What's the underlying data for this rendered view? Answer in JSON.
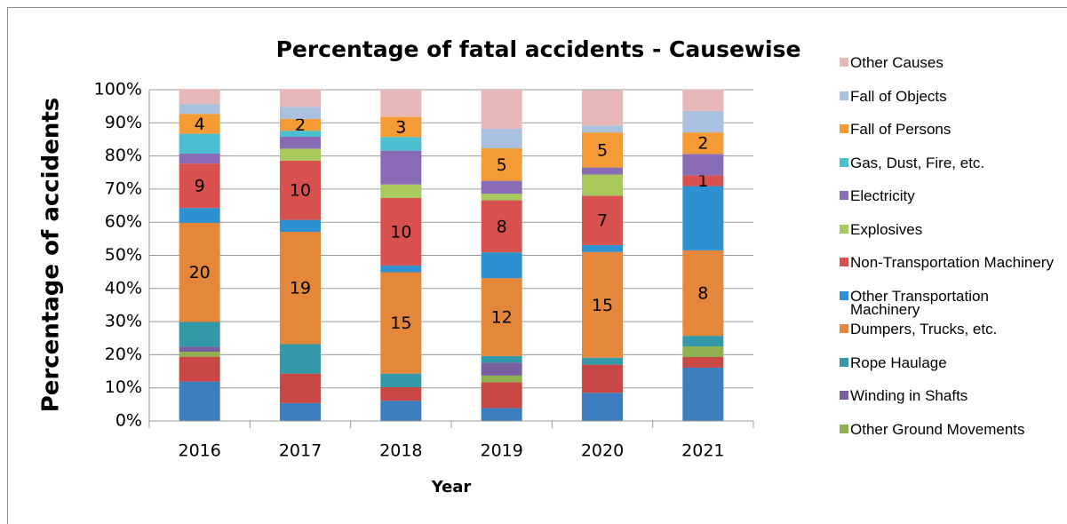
{
  "chart_data": {
    "type": "stacked_bar",
    "title": "Percentage of fatal accidents - Causewise",
    "x_label": "Year",
    "y_label": "Percentage of accidents",
    "categories": [
      "2016",
      "2017",
      "2018",
      "2019",
      "2020",
      "2021"
    ],
    "ylim": [
      0,
      100
    ],
    "yticks": [
      {
        "value": 0,
        "label": "0%"
      },
      {
        "value": 10,
        "label": "10%"
      },
      {
        "value": 20,
        "label": "20%"
      },
      {
        "value": 30,
        "label": "30%"
      },
      {
        "value": 40,
        "label": "40%"
      },
      {
        "value": 50,
        "label": "50%"
      },
      {
        "value": 60,
        "label": "60%"
      },
      {
        "value": 70,
        "label": "70%"
      },
      {
        "value": 80,
        "label": "80%"
      },
      {
        "value": 90,
        "label": "90%"
      },
      {
        "value": 100,
        "label": "100%"
      }
    ],
    "grid": true,
    "legend": "right",
    "series": [
      {
        "name": null,
        "color": "#3d7ebf",
        "values": [
          11.9,
          5.4,
          6.1,
          3.9,
          8.5,
          16.1
        ]
      },
      {
        "name": null,
        "color": "#c94845",
        "values": [
          7.5,
          8.9,
          4.1,
          7.8,
          8.5,
          3.2
        ]
      },
      {
        "name": "Other Ground Movements",
        "color": "#8fb04e",
        "values": [
          1.5,
          0,
          0,
          2.0,
          0,
          3.2
        ]
      },
      {
        "name": "Winding in Shafts",
        "color": "#7a5fa0",
        "values": [
          1.5,
          0,
          0,
          3.9,
          0,
          0
        ]
      },
      {
        "name": "Rope Haulage",
        "color": "#3399a8",
        "values": [
          7.5,
          8.9,
          4.1,
          2.0,
          2.1,
          3.2
        ]
      },
      {
        "name": "Dumpers, Trucks, etc.",
        "color": "#e4873a",
        "values": [
          29.9,
          33.9,
          30.6,
          23.5,
          31.9,
          25.8
        ],
        "counts": [
          20,
          19,
          15,
          12,
          15,
          8
        ]
      },
      {
        "name": "Other Transportation Machinery",
        "color": "#2e90d0",
        "values": [
          4.5,
          3.6,
          2.0,
          7.8,
          2.1,
          19.4
        ]
      },
      {
        "name": "Non-Transportation Machinery",
        "color": "#d9514e",
        "values": [
          13.4,
          17.9,
          20.4,
          15.7,
          14.9,
          3.2
        ],
        "counts": [
          9,
          10,
          10,
          8,
          7,
          1
        ]
      },
      {
        "name": "Explosives",
        "color": "#a8c95c",
        "values": [
          0,
          3.6,
          4.1,
          2.0,
          6.4,
          0
        ]
      },
      {
        "name": "Electricity",
        "color": "#8a6bb5",
        "values": [
          3.0,
          3.6,
          10.2,
          3.9,
          2.1,
          6.5
        ]
      },
      {
        "name": "Gas, Dust, Fire, etc.",
        "color": "#4bbfcf",
        "values": [
          6.0,
          1.8,
          4.1,
          0,
          0,
          0
        ]
      },
      {
        "name": "Fall of Persons",
        "color": "#f59b35",
        "values": [
          6.0,
          3.6,
          6.1,
          9.8,
          10.6,
          6.5
        ],
        "counts": [
          4,
          2,
          3,
          5,
          5,
          2
        ]
      },
      {
        "name": "Fall of Objects",
        "color": "#a9c1df",
        "values": [
          3.0,
          3.6,
          0,
          5.9,
          2.1,
          6.5
        ]
      },
      {
        "name": "Other Causes",
        "color": "#e8b8b9",
        "values": [
          4.5,
          5.4,
          8.2,
          11.8,
          10.6,
          6.5
        ]
      }
    ]
  }
}
